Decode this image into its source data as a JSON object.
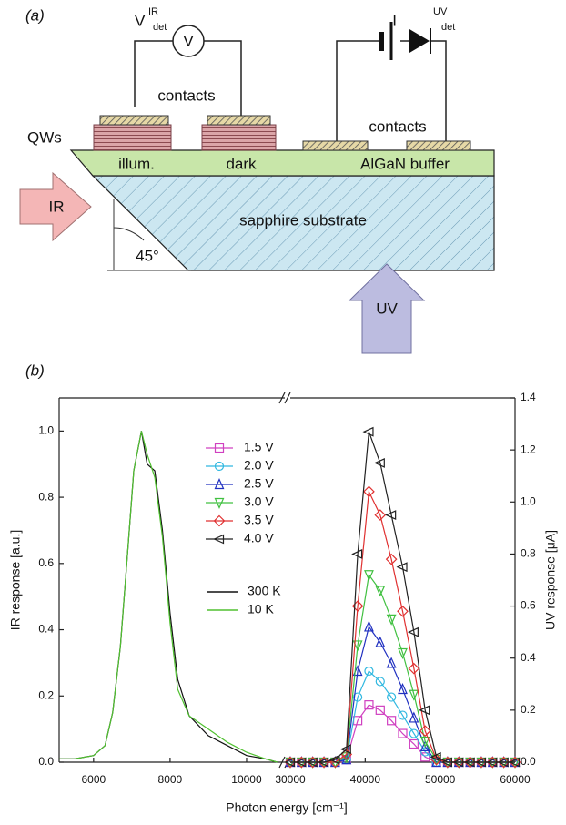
{
  "panel_a": {
    "label": "(a)",
    "ir_detector": {
      "symbol": "V",
      "sup": "IR",
      "sub": "det"
    },
    "voltmeter": "V",
    "uv_detector": {
      "symbol": "I",
      "sup": "UV",
      "sub": "det"
    },
    "contacts_left": "contacts",
    "contacts_right": "contacts",
    "qws": "QWs",
    "illuminated": "illum.",
    "dark": "dark",
    "buffer": "AlGaN buffer",
    "substrate": "sapphire substrate",
    "ir_arrow": "IR",
    "angle": "45°",
    "uv_arrow": "UV"
  },
  "chart_data": {
    "type": "line",
    "panel_label": "(b)",
    "x_label": "Photon energy [cm⁻¹]",
    "y_label": "IR response [a.u.]",
    "y2_label": "UV response [μA]",
    "x_segments": [
      {
        "xlim": [
          5100,
          11000
        ],
        "xticks": [
          6000,
          8000,
          10000
        ]
      },
      {
        "xlim": [
          30000,
          60000
        ],
        "xticks": [
          30000,
          40000,
          50000,
          60000
        ]
      }
    ],
    "ylim": [
      0,
      1.1
    ],
    "yticks": [
      {
        "value": 0,
        "label": "0.0"
      },
      0.2,
      0.4,
      0.6,
      0.8,
      {
        "value": 1,
        "label": "1.0"
      }
    ],
    "y2lim": [
      0,
      1.4
    ],
    "y2ticks": [
      {
        "value": 0,
        "label": "0.0"
      },
      0.2,
      0.4,
      0.6,
      0.8,
      {
        "value": 1,
        "label": "1.0"
      },
      1.2,
      1.4
    ],
    "series": [
      {
        "name": "1.5 V",
        "color": "#d040c0",
        "marker": "square",
        "axis": "y2",
        "x": [
          30000,
          31500,
          33000,
          34500,
          36000,
          37500,
          39000,
          40500,
          42000,
          43500,
          45000,
          46500,
          48000,
          49500,
          51000,
          52500,
          54000,
          55500,
          57000,
          58500,
          60000
        ],
        "values": [
          0,
          0,
          0,
          0,
          0,
          0.01,
          0.16,
          0.22,
          0.2,
          0.16,
          0.11,
          0.07,
          0.02,
          0,
          0,
          0,
          0,
          0,
          0,
          0,
          0
        ]
      },
      {
        "name": "2.0 V",
        "color": "#30b8e0",
        "marker": "circle",
        "axis": "y2",
        "x": [
          30000,
          31500,
          33000,
          34500,
          36000,
          37500,
          39000,
          40500,
          42000,
          43500,
          45000,
          46500,
          48000,
          49500,
          51000,
          52500,
          54000,
          55500,
          57000,
          58500,
          60000
        ],
        "values": [
          0,
          0,
          0,
          0,
          0,
          0.01,
          0.25,
          0.35,
          0.31,
          0.25,
          0.18,
          0.11,
          0.04,
          0,
          0,
          0,
          0,
          0,
          0,
          0,
          0
        ]
      },
      {
        "name": "2.5 V",
        "color": "#2030c0",
        "marker": "triangle-up",
        "axis": "y2",
        "x": [
          30000,
          31500,
          33000,
          34500,
          36000,
          37500,
          39000,
          40500,
          42000,
          43500,
          45000,
          46500,
          48000,
          49500,
          51000,
          52500,
          54000,
          55500,
          57000,
          58500,
          60000
        ],
        "values": [
          0,
          0,
          0,
          0,
          0,
          0.01,
          0.35,
          0.52,
          0.46,
          0.38,
          0.28,
          0.17,
          0.06,
          0,
          0,
          0,
          0,
          0,
          0,
          0,
          0
        ]
      },
      {
        "name": "3.0 V",
        "color": "#40c040",
        "marker": "triangle-down",
        "axis": "y2",
        "x": [
          30000,
          31500,
          33000,
          34500,
          36000,
          37500,
          39000,
          40500,
          42000,
          43500,
          45000,
          46500,
          48000,
          49500,
          51000,
          52500,
          54000,
          55500,
          57000,
          58500,
          60000
        ],
        "values": [
          0,
          0,
          0,
          0,
          0,
          0.02,
          0.45,
          0.72,
          0.66,
          0.55,
          0.42,
          0.26,
          0.08,
          0.01,
          0,
          0,
          0,
          0,
          0,
          0,
          0
        ]
      },
      {
        "name": "3.5 V",
        "color": "#e03030",
        "marker": "diamond",
        "axis": "y2",
        "x": [
          30000,
          31500,
          33000,
          34500,
          36000,
          37500,
          39000,
          40500,
          42000,
          43500,
          45000,
          46500,
          48000,
          49500,
          51000,
          52500,
          54000,
          55500,
          57000,
          58500,
          60000
        ],
        "values": [
          0,
          0,
          0,
          0,
          0,
          0.03,
          0.6,
          1.04,
          0.95,
          0.78,
          0.58,
          0.36,
          0.12,
          0.01,
          0,
          0,
          0,
          0,
          0,
          0,
          0
        ]
      },
      {
        "name": "4.0 V",
        "color": "#222222",
        "marker": "triangle-left",
        "axis": "y2",
        "x": [
          30000,
          31500,
          33000,
          34500,
          36000,
          37500,
          39000,
          40500,
          42000,
          43500,
          45000,
          46500,
          48000,
          49500,
          51000,
          52500,
          54000,
          55500,
          57000,
          58500,
          60000
        ],
        "values": [
          0,
          0,
          0,
          0,
          0.01,
          0.05,
          0.8,
          1.27,
          1.15,
          0.95,
          0.75,
          0.5,
          0.2,
          0.02,
          0,
          0,
          0,
          0,
          0,
          0,
          0
        ]
      },
      {
        "name": "300 K",
        "color": "#111111",
        "x": [
          5100,
          5500,
          6000,
          6300,
          6500,
          6700,
          6900,
          7050,
          7250,
          7400,
          7600,
          7800,
          8000,
          8200,
          8500,
          9000,
          9500,
          10000,
          10500,
          10800
        ],
        "values": [
          0.01,
          0.01,
          0.02,
          0.05,
          0.15,
          0.35,
          0.65,
          0.88,
          1.0,
          0.9,
          0.88,
          0.7,
          0.45,
          0.25,
          0.14,
          0.08,
          0.05,
          0.02,
          0.01,
          0
        ]
      },
      {
        "name": "10 K",
        "color": "#50c030",
        "x": [
          5100,
          5500,
          6000,
          6300,
          6500,
          6700,
          6900,
          7050,
          7250,
          7400,
          7600,
          7800,
          8000,
          8200,
          8500,
          9000,
          9500,
          10000,
          10500,
          10800
        ],
        "values": [
          0.01,
          0.01,
          0.02,
          0.05,
          0.15,
          0.35,
          0.65,
          0.88,
          1.0,
          0.93,
          0.86,
          0.68,
          0.42,
          0.22,
          0.14,
          0.1,
          0.06,
          0.03,
          0.01,
          0
        ]
      }
    ]
  }
}
